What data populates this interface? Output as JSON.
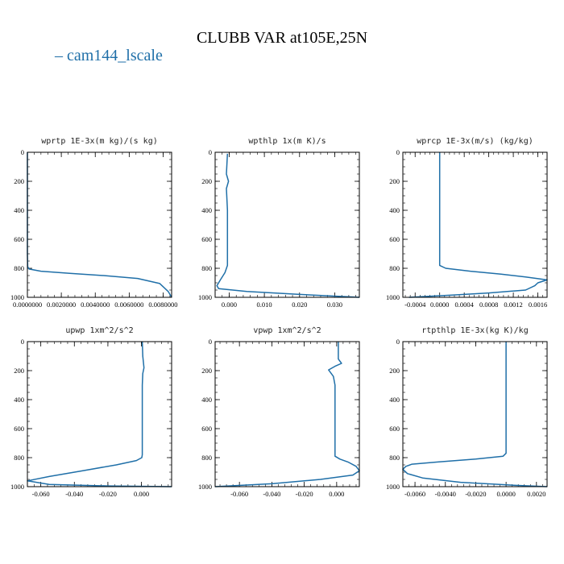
{
  "title": "CLUBB VAR at105E,25N",
  "legend": {
    "dash": "–",
    "label": "cam144_lscale",
    "color": "#1f6fa8"
  },
  "chart_data": [
    {
      "type": "line",
      "title": "wprtp  1E-3x(m kg)/(s kg)",
      "xlim": [
        0,
        0.0085
      ],
      "ylim": [
        1000,
        0
      ],
      "xticks": [
        0,
        0.002,
        0.004,
        0.006,
        0.008
      ],
      "xtick_labels": [
        "0.0000000",
        "0.0020000",
        "0.0040000",
        "0.0060000",
        "0.0080000"
      ],
      "yticks": [
        0,
        200,
        400,
        600,
        800,
        1000
      ],
      "series": [
        {
          "color": "#1f6fa8",
          "x": [
            0,
            0,
            2e-05,
            0.0001,
            0.0008,
            0.0025,
            0.0045,
            0.0065,
            0.0078,
            0.0083,
            0.0085
          ],
          "y": [
            0,
            700,
            790,
            805,
            820,
            835,
            850,
            870,
            905,
            960,
            1000
          ]
        }
      ]
    },
    {
      "type": "line",
      "title": "wpthlp  1x(m K)/s",
      "xlim": [
        -0.004,
        0.037
      ],
      "ylim": [
        1000,
        0
      ],
      "xticks": [
        0,
        0.01,
        0.02,
        0.03
      ],
      "xtick_labels": [
        "0.000",
        "0.010",
        "0.020",
        "0.030"
      ],
      "yticks": [
        0,
        200,
        400,
        600,
        800,
        1000
      ],
      "series": [
        {
          "color": "#1f6fa8",
          "x": [
            -0.0005,
            -0.0008,
            -0.0002,
            -0.0008,
            -0.0005,
            -0.0005,
            -0.0012,
            -0.0025,
            -0.0035,
            -0.003,
            0.005,
            0.02,
            0.037
          ],
          "y": [
            10,
            150,
            200,
            250,
            400,
            780,
            830,
            880,
            920,
            940,
            960,
            980,
            1000
          ]
        }
      ]
    },
    {
      "type": "line",
      "title": "wprcp  1E-3x(m/s) (kg/kg)",
      "xlim": [
        -0.0006,
        0.00175
      ],
      "ylim": [
        1000,
        0
      ],
      "xticks": [
        -0.0004,
        0,
        0.0004,
        0.0008,
        0.0012,
        0.0016
      ],
      "xtick_labels": [
        "-0.0004",
        "0.0000",
        "0.0004",
        "0.0008",
        "0.0012",
        "0.0016"
      ],
      "yticks": [
        0,
        200,
        400,
        600,
        800,
        1000
      ],
      "series": [
        {
          "color": "#1f6fa8",
          "x": [
            0,
            0,
            0.0001,
            0.0005,
            0.001,
            0.0014,
            0.00175,
            0.0016,
            0.00155,
            0.0014,
            0.0008,
            0.0002,
            -0.0005
          ],
          "y": [
            0,
            780,
            800,
            820,
            840,
            860,
            880,
            900,
            920,
            950,
            970,
            985,
            1000
          ]
        }
      ]
    },
    {
      "type": "line",
      "title": "upwp  1xm^2/s^2",
      "xlim": [
        -0.068,
        0.018
      ],
      "ylim": [
        1000,
        0
      ],
      "xticks": [
        -0.06,
        -0.04,
        -0.02,
        0
      ],
      "xtick_labels": [
        "-0.060",
        "-0.040",
        "-0.020",
        "0.000"
      ],
      "yticks": [
        0,
        200,
        400,
        600,
        800,
        1000
      ],
      "series": [
        {
          "color": "#1f6fa8",
          "x": [
            0.0005,
            0.0008,
            0.0015,
            0.0008,
            0.0005,
            0.0005,
            0.0002,
            -0.003,
            -0.015,
            -0.035,
            -0.055,
            -0.068,
            -0.055,
            -0.02,
            0.018
          ],
          "y": [
            0,
            100,
            180,
            220,
            300,
            780,
            800,
            820,
            850,
            890,
            930,
            960,
            985,
            995,
            1000
          ]
        }
      ]
    },
    {
      "type": "line",
      "title": "vpwp  1xm^2/s^2",
      "xlim": [
        -0.075,
        0.014
      ],
      "ylim": [
        1000,
        0
      ],
      "xticks": [
        -0.06,
        -0.04,
        -0.02,
        0
      ],
      "xtick_labels": [
        "-0.060",
        "-0.040",
        "-0.020",
        "0.000"
      ],
      "yticks": [
        0,
        200,
        400,
        600,
        800,
        1000
      ],
      "series": [
        {
          "color": "#1f6fa8",
          "x": [
            0.001,
            0.001,
            0.003,
            -0.001,
            -0.005,
            -0.002,
            -0.001,
            -0.001,
            0.002,
            0.007,
            0.012,
            0.014,
            0.01,
            -0.01,
            -0.04,
            -0.075
          ],
          "y": [
            0,
            120,
            150,
            170,
            195,
            240,
            300,
            790,
            810,
            830,
            860,
            890,
            920,
            950,
            980,
            1000
          ]
        }
      ]
    },
    {
      "type": "line",
      "title": "rtpthlp  1E-3x(kg K)/kg",
      "xlim": [
        -0.0068,
        0.0027
      ],
      "ylim": [
        1000,
        0
      ],
      "xticks": [
        -0.006,
        -0.004,
        -0.002,
        0,
        0.002
      ],
      "xtick_labels": [
        "-0.0060",
        "-0.0040",
        "-0.0020",
        "0.0000",
        "0.0020"
      ],
      "yticks": [
        0,
        200,
        400,
        600,
        800,
        1000
      ],
      "series": [
        {
          "color": "#1f6fa8",
          "x": [
            0,
            0,
            -0.0002,
            -0.002,
            -0.0045,
            -0.0062,
            -0.0066,
            -0.0068,
            -0.0065,
            -0.0055,
            -0.003,
            0.0005,
            0.0027
          ],
          "y": [
            0,
            770,
            790,
            810,
            830,
            845,
            860,
            880,
            910,
            940,
            970,
            990,
            1000
          ]
        }
      ]
    }
  ]
}
